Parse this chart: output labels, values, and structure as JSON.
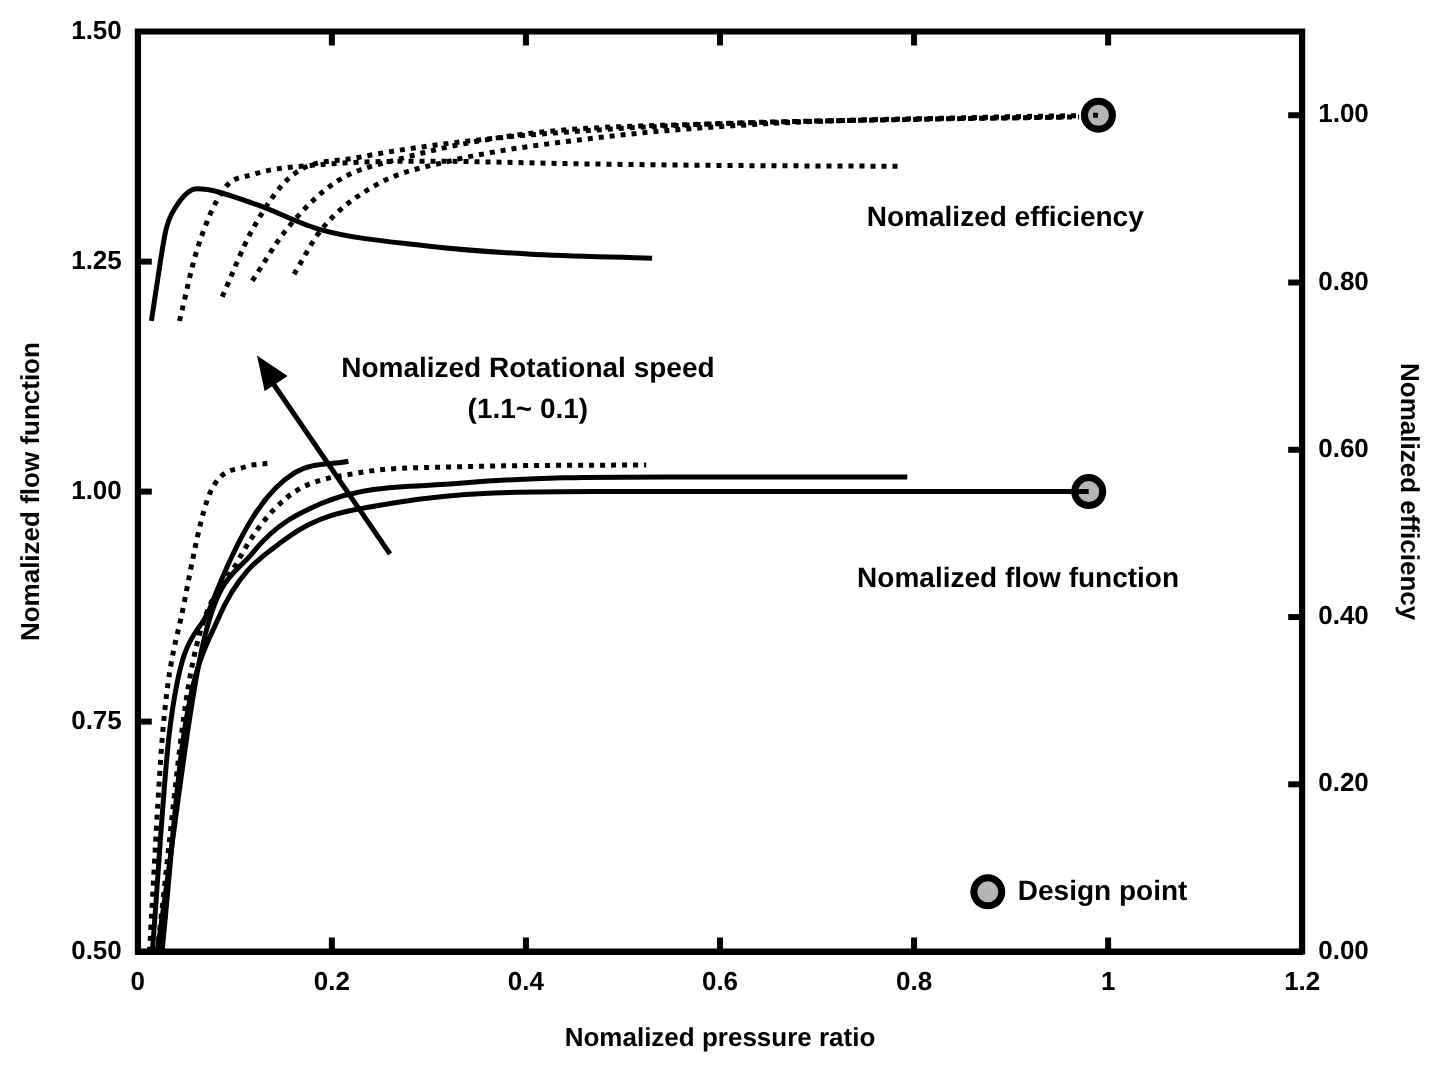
{
  "chart_data": {
    "type": "line",
    "xlabel": "Nomalized pressure ratio",
    "ylabel": "Nomalized flow function",
    "y2label": "Nomalized efficiency",
    "xlim": [
      0,
      1.2
    ],
    "xticks": [
      0,
      0.2,
      0.4,
      0.6,
      0.8,
      1,
      1.2
    ],
    "ylim": [
      0.5,
      1.5
    ],
    "yticks": [
      {
        "value": 0.5,
        "label": "0.50"
      },
      {
        "value": 0.75,
        "label": "0.75"
      },
      {
        "value": 1,
        "label": "1.00"
      },
      {
        "value": 1.25,
        "label": "1.25"
      },
      {
        "value": 1.5,
        "label": "1.50"
      }
    ],
    "y2lim": [
      0,
      1.1
    ],
    "y2ticks": [
      {
        "value": 0,
        "label": "0.00"
      },
      {
        "value": 0.2,
        "label": "0.20"
      },
      {
        "value": 0.4,
        "label": "0.40"
      },
      {
        "value": 0.6,
        "label": "0.60"
      },
      {
        "value": 0.8,
        "label": "0.80"
      },
      {
        "value": 1,
        "label": "1.00"
      }
    ],
    "grid": false,
    "legend": "bottom right",
    "annotations": [
      "Nomalized Rotational speed",
      "(1.1~ 0.1)",
      "Nomalized efficiency",
      "Nomalized flow function"
    ],
    "series": [
      {
        "type": "line",
        "axis": "y2",
        "color": "#000000",
        "line_style": "solid",
        "marker": "none",
        "x": [
          0.014,
          0.02,
          0.029,
          0.039,
          0.061,
          0.118,
          0.189,
          0.296,
          0.402,
          0.53
        ],
        "values": [
          0.754,
          0.8,
          0.863,
          0.89,
          0.912,
          0.895,
          0.863,
          0.844,
          0.834,
          0.829
        ]
      },
      {
        "type": "line",
        "axis": "y2",
        "color": "#000000",
        "line_style": "dotted",
        "marker": "none",
        "x": [
          0.043,
          0.061,
          0.089,
          0.118,
          0.189,
          0.3,
          0.45,
          0.6,
          0.786
        ],
        "values": [
          0.754,
          0.839,
          0.912,
          0.929,
          0.941,
          0.945,
          0.942,
          0.94,
          0.939
        ]
      },
      {
        "type": "line",
        "axis": "y2",
        "color": "#000000",
        "line_style": "dotted",
        "marker": "none",
        "x": [
          0.087,
          0.118,
          0.16,
          0.225,
          0.332,
          0.509,
          0.7,
          0.96
        ],
        "values": [
          0.783,
          0.863,
          0.929,
          0.949,
          0.968,
          0.985,
          0.993,
          0.998
        ]
      },
      {
        "type": "line",
        "axis": "y2",
        "color": "#000000",
        "line_style": "dotted",
        "marker": "none",
        "x": [
          0.118,
          0.153,
          0.204,
          0.274,
          0.402,
          0.6,
          0.8,
          0.97
        ],
        "values": [
          0.802,
          0.863,
          0.92,
          0.949,
          0.978,
          0.99,
          0.995,
          0.998
        ]
      },
      {
        "type": "line",
        "axis": "y2",
        "color": "#000000",
        "line_style": "dotted",
        "marker": "none",
        "x": [
          0.161,
          0.189,
          0.246,
          0.317,
          0.473,
          0.65,
          0.85,
          0.99
        ],
        "values": [
          0.81,
          0.863,
          0.917,
          0.944,
          0.973,
          0.99,
          0.997,
          1.0
        ]
      },
      {
        "type": "line",
        "color": "#000000",
        "line_style": "dotted",
        "marker": "none",
        "x": [
          0.012,
          0.026,
          0.047,
          0.075,
          0.111,
          0.139
        ],
        "values": [
          0.5,
          0.742,
          0.875,
          1.0,
          1.027,
          1.031
        ]
      },
      {
        "type": "line",
        "color": "#000000",
        "line_style": "solid",
        "marker": "none",
        "x": [
          0.015,
          0.033,
          0.075,
          0.118,
          0.161,
          0.217
        ],
        "values": [
          0.5,
          0.742,
          0.875,
          0.971,
          1.02,
          1.033
        ]
      },
      {
        "type": "line",
        "color": "#000000",
        "line_style": "dotted",
        "marker": "none",
        "x": [
          0.02,
          0.054,
          0.104,
          0.153,
          0.225,
          0.332,
          0.524
        ],
        "values": [
          0.5,
          0.8,
          0.926,
          0.993,
          1.02,
          1.027,
          1.029
        ]
      },
      {
        "type": "line",
        "color": "#000000",
        "line_style": "solid",
        "marker": "none",
        "x": [
          0.02,
          0.068,
          0.118,
          0.189,
          0.332,
          0.545,
          0.793
        ],
        "values": [
          0.5,
          0.838,
          0.933,
          0.987,
          1.009,
          1.016,
          1.016
        ]
      },
      {
        "type": "line",
        "color": "#000000",
        "line_style": "solid",
        "marker": "none",
        "x": [
          0.025,
          0.047,
          0.082,
          0.153,
          0.26,
          0.473,
          0.98
        ],
        "values": [
          0.5,
          0.733,
          0.86,
          0.949,
          0.987,
          1.0,
          1.0
        ]
      },
      {
        "type": "scatter",
        "name": "Design point",
        "color": "#000000",
        "marker": "circle",
        "x": [
          0.98
        ],
        "values": [
          1.0
        ]
      },
      {
        "type": "scatter",
        "axis": "y2",
        "color": "#000000",
        "marker": "circle",
        "x": [
          0.99
        ],
        "values": [
          1.0
        ]
      }
    ]
  }
}
